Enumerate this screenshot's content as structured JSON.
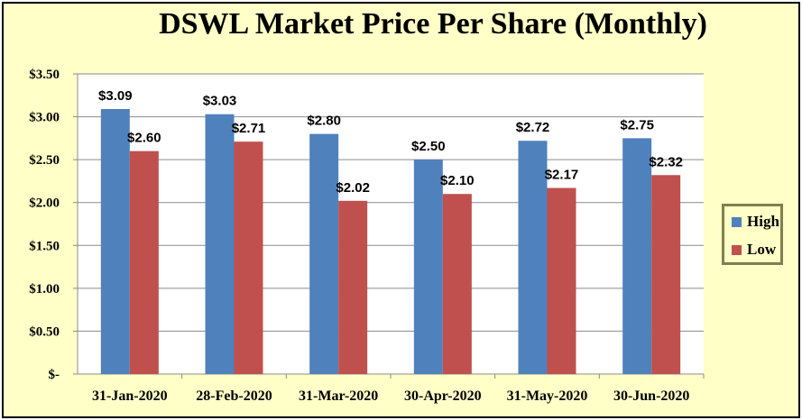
{
  "chart_data": {
    "type": "bar",
    "title": "DSWL Market Price Per Share (Monthly)",
    "categories": [
      "31-Jan-2020",
      "28-Feb-2020",
      "31-Mar-2020",
      "30-Apr-2020",
      "31-May-2020",
      "30-Jun-2020"
    ],
    "series": [
      {
        "name": "High",
        "color": "#4f81bd",
        "values": [
          3.09,
          3.03,
          2.8,
          2.5,
          2.72,
          2.75
        ],
        "labels": [
          "$3.09",
          "$3.03",
          "$2.80",
          "$2.50",
          "$2.72",
          "$2.75"
        ]
      },
      {
        "name": "Low",
        "color": "#c0504d",
        "values": [
          2.6,
          2.71,
          2.02,
          2.1,
          2.17,
          2.32
        ],
        "labels": [
          "$2.60",
          "$2.71",
          "$2.02",
          "$2.10",
          "$2.17",
          "$2.32"
        ]
      }
    ],
    "yticks": [
      0,
      0.5,
      1.0,
      1.5,
      2.0,
      2.5,
      3.0,
      3.5
    ],
    "ytick_labels": [
      "$-",
      "$0.50",
      "$1.00",
      "$1.50",
      "$2.00",
      "$2.50",
      "$3.00",
      "$3.50"
    ],
    "ylim": [
      0,
      3.5
    ],
    "xlabel": "",
    "ylabel": "",
    "grid": true,
    "legend_position": "right",
    "plot_background": "#ffffff",
    "chart_background": "#ffffc7"
  }
}
